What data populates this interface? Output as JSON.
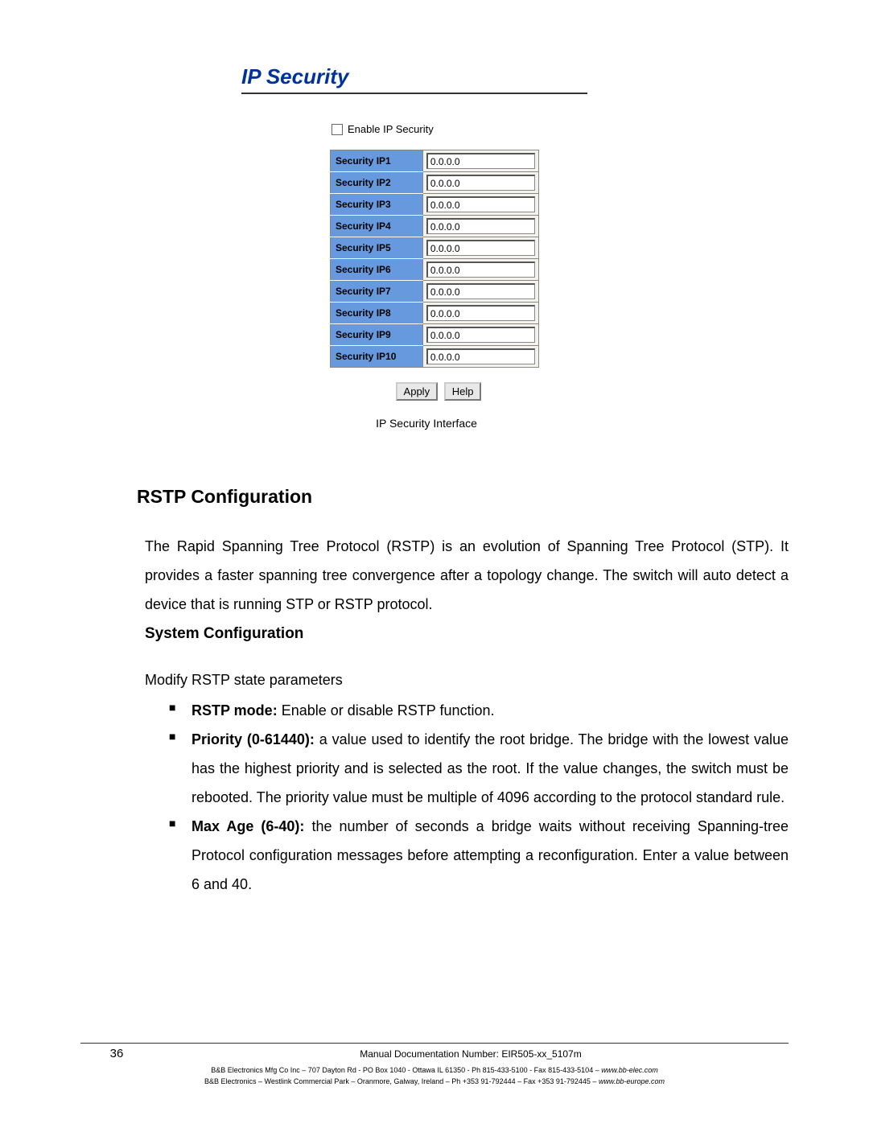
{
  "screenshot": {
    "title": "IP Security",
    "title_color": "#003399",
    "checkbox_label": "Enable IP Security",
    "checkbox_checked": false,
    "header_bg": "#6699dd",
    "rows": [
      {
        "label": "Security IP1",
        "value": "0.0.0.0"
      },
      {
        "label": "Security IP2",
        "value": "0.0.0.0"
      },
      {
        "label": "Security IP3",
        "value": "0.0.0.0"
      },
      {
        "label": "Security IP4",
        "value": "0.0.0.0"
      },
      {
        "label": "Security IP5",
        "value": "0.0.0.0"
      },
      {
        "label": "Security IP6",
        "value": "0.0.0.0"
      },
      {
        "label": "Security IP7",
        "value": "0.0.0.0"
      },
      {
        "label": "Security IP8",
        "value": "0.0.0.0"
      },
      {
        "label": "Security IP9",
        "value": "0.0.0.0"
      },
      {
        "label": "Security IP10",
        "value": "0.0.0.0"
      }
    ],
    "buttons": {
      "apply": "Apply",
      "help": "Help"
    },
    "caption": "IP Security Interface"
  },
  "doc": {
    "h2": "RSTP Configuration",
    "para1": "The Rapid Spanning Tree Protocol (RSTP) is an evolution of Spanning Tree Protocol (STP). It provides a faster spanning tree convergence after a topology change. The switch will auto detect a device that is running STP or RSTP protocol.",
    "h3": "System Configuration",
    "intro": "Modify RSTP state parameters",
    "bullets": [
      {
        "bold": "RSTP mode:",
        "text": " Enable or disable RSTP function."
      },
      {
        "bold": "Priority (0-61440):",
        "text": " a value used to identify the root bridge. The bridge with the lowest value has the highest priority and is selected as the root. If the value changes, the switch must be rebooted. The priority value must be multiple of 4096 according to the protocol standard rule."
      },
      {
        "bold": "Max Age (6-40):",
        "text": " the number of seconds a bridge waits without receiving Spanning-tree Protocol configuration messages before attempting a reconfiguration. Enter a value between 6 and 40."
      }
    ]
  },
  "footer": {
    "page": "36",
    "docnum": "Manual Documentation Number: EIR505-xx_5107m",
    "line1a": "B&B Electronics Mfg Co Inc – 707 Dayton Rd - PO Box 1040 - Ottawa IL 61350 - Ph 815-433-5100 - Fax 815-433-5104 – ",
    "line1b": "www.bb-elec.com",
    "line2a": "B&B Electronics – Westlink Commercial Park – Oranmore, Galway, Ireland – Ph +353 91-792444 – Fax +353 91-792445 – ",
    "line2b": "www.bb-europe.com"
  }
}
